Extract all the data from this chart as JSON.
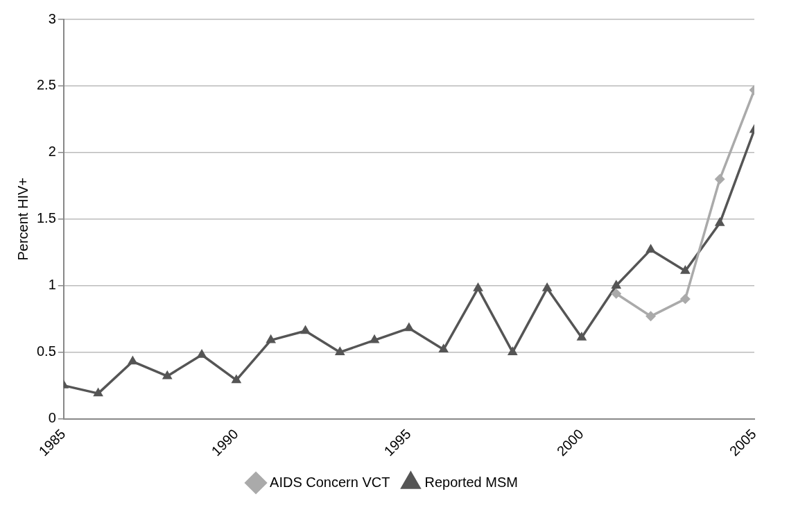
{
  "chart_data": {
    "type": "line",
    "ylabel": "Percent HIV+",
    "x": [
      1985,
      1986,
      1987,
      1988,
      1989,
      1990,
      1991,
      1992,
      1993,
      1994,
      1995,
      1996,
      1997,
      1998,
      1999,
      2000,
      2001,
      2002,
      2003,
      2004,
      2005
    ],
    "series": [
      {
        "name": "AIDS Concern VCT",
        "color": "#aaaaaa",
        "marker": "diamond",
        "values": [
          null,
          null,
          null,
          null,
          null,
          null,
          null,
          null,
          null,
          null,
          null,
          null,
          null,
          null,
          null,
          null,
          0.94,
          0.77,
          0.9,
          1.8,
          2.47
        ]
      },
      {
        "name": "Reported MSM",
        "color": "#555555",
        "marker": "triangle",
        "values": [
          0.25,
          0.19,
          0.43,
          0.32,
          0.48,
          0.29,
          0.59,
          0.66,
          0.5,
          0.59,
          0.68,
          0.52,
          0.98,
          0.5,
          0.98,
          0.61,
          1.0,
          1.27,
          1.11,
          1.47,
          2.17
        ]
      }
    ],
    "xlim": [
      1985,
      2005
    ],
    "xticks": [
      1985,
      1990,
      1995,
      2000,
      2005
    ],
    "ylim": [
      0,
      3
    ],
    "yticks": [
      0,
      0.5,
      1,
      1.5,
      2,
      2.5,
      3
    ],
    "grid": "y",
    "legend": "bottom",
    "line_style": "solid"
  }
}
